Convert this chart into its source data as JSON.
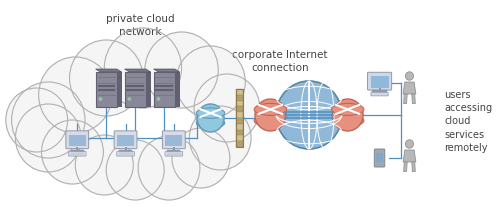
{
  "background_color": "#ffffff",
  "cloud_fill": "#f5f5f5",
  "cloud_edge": "#b0b0b0",
  "server_body": "#888898",
  "server_dark": "#6a6a7a",
  "desktop_body": "#d8dce8",
  "desktop_screen": "#9ab8d8",
  "router_blue_fill": "#90c8e0",
  "router_blue_edge": "#6098b8",
  "router_red_fill": "#e89080",
  "router_red_edge": "#c06858",
  "globe_fill": "#90b8d8",
  "globe_edge": "#5888a8",
  "globe_line": "#ffffff",
  "wall_colors": [
    "#d0c090",
    "#b0a070"
  ],
  "wall_edge": "#907848",
  "line_color": "#5090c0",
  "person_fill": "#b8b8b8",
  "person_edge": "#909090",
  "monitor_body": "#d0d8e8",
  "monitor_screen": "#90b8d8",
  "monitor_stand": "#a0a8b8",
  "phone_fill": "#a0a8b0",
  "phone_screen": "#80a8c8",
  "text_color": "#444444",
  "label_private": "private cloud\nnetwork",
  "label_corporate": "corporate Internet\nconnection",
  "label_users": "users\naccessing\ncloud\nservices\nremotely",
  "figsize": [
    5.0,
    2.16
  ],
  "dpi": 100
}
